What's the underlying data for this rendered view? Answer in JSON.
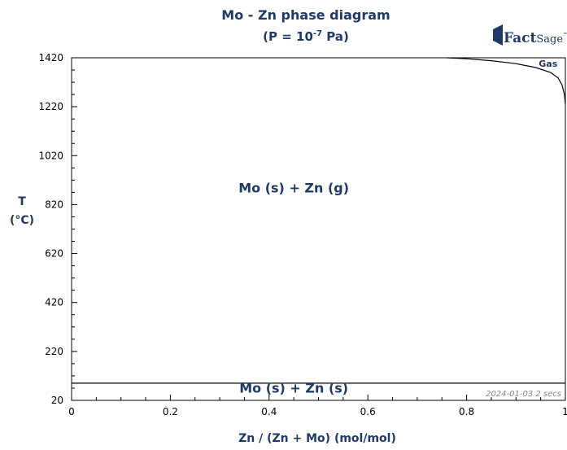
{
  "chart_data": {
    "type": "line",
    "title": "Mo - Zn phase diagram",
    "subtitle_prefix": "(P = 10",
    "subtitle_exp": "-7",
    "subtitle_suffix": " Pa)",
    "xlabel": "Zn / (Zn + Mo) (mol/mol)",
    "ylabel_line1": "T",
    "ylabel_line2": "(°C)",
    "xlim": [
      0,
      1
    ],
    "ylim": [
      20,
      1420
    ],
    "x_ticks": [
      0,
      0.2,
      0.4,
      0.6,
      0.8,
      1
    ],
    "x_tick_labels": [
      "0",
      "0.2",
      "0.4",
      "0.6",
      "0.8",
      "1"
    ],
    "y_ticks": [
      20,
      220,
      420,
      620,
      820,
      1020,
      1220,
      1420
    ],
    "y_tick_labels": [
      "20",
      "220",
      "420",
      "620",
      "820",
      "1020",
      "1220",
      "1420"
    ],
    "minor_x_step": 0.05,
    "minor_y_step": 50,
    "grid": false,
    "series": [
      {
        "line": "gas-boundary",
        "points": [
          [
            0.76,
            1420
          ],
          [
            0.8,
            1416
          ],
          [
            0.85,
            1408
          ],
          [
            0.9,
            1396
          ],
          [
            0.94,
            1380
          ],
          [
            0.97,
            1360
          ],
          [
            0.985,
            1338
          ],
          [
            0.993,
            1310
          ],
          [
            0.998,
            1270
          ],
          [
            1.0,
            1230
          ]
        ]
      },
      {
        "line": "zn-condensation",
        "points": [
          [
            0,
            90
          ],
          [
            1,
            90
          ]
        ]
      }
    ],
    "regions": [
      {
        "label": "Mo (s)  + Zn (g)",
        "x": 0.45,
        "y": 870
      },
      {
        "label": "Mo (s)  + Zn (s)",
        "x": 0.45,
        "y": 52
      },
      {
        "label": "Gas",
        "x": 0.965,
        "y": 1383
      }
    ],
    "stamp": "2024-01-03  2 secs",
    "logo": {
      "word1": "Fact",
      "word2": "Sage",
      "mark": "™"
    }
  }
}
